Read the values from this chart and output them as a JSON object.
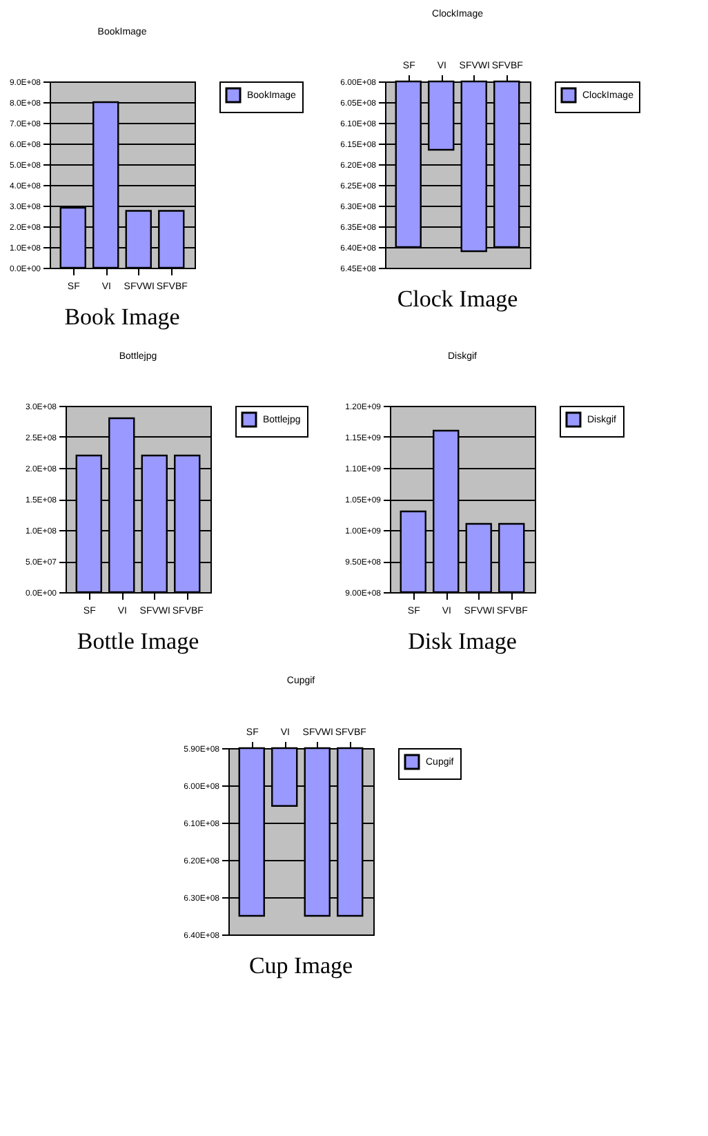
{
  "chart_data": [
    {
      "type": "bar",
      "title": "BookImage",
      "categories": [
        "SF",
        "VI",
        "SFVWI",
        "SFVBF"
      ],
      "series": [
        {
          "name": "BookImage",
          "color": "#9999ff",
          "values": [
            290000000,
            800000000,
            275000000,
            275000000
          ]
        }
      ],
      "ylim": [
        0,
        900000000
      ],
      "yticks": [
        {
          "value": 0,
          "label": "0.0E+00"
        },
        {
          "value": 100000000,
          "label": "1.0E+08"
        },
        {
          "value": 200000000,
          "label": "2.0E+08"
        },
        {
          "value": 300000000,
          "label": "3.0E+08"
        },
        {
          "value": 400000000,
          "label": "4.0E+08"
        },
        {
          "value": 500000000,
          "label": "5.0E+08"
        },
        {
          "value": 600000000,
          "label": "6.0E+08"
        },
        {
          "value": 700000000,
          "label": "7.0E+08"
        },
        {
          "value": 800000000,
          "label": "8.0E+08"
        },
        {
          "value": 900000000,
          "label": "9.0E+08"
        }
      ],
      "grid": "y",
      "legend": "right",
      "annotations": [
        "Book Image"
      ]
    },
    {
      "type": "bar",
      "title": "ClockImage",
      "categories": [
        "SF",
        "VI",
        "SFVWI",
        "SFVBF"
      ],
      "series": [
        {
          "name": "ClockImage",
          "color": "#9999ff",
          "values": [
            640000000,
            616500000,
            641000000,
            640000000
          ]
        }
      ],
      "ylim": [
        645000000,
        600000000
      ],
      "yticks": [
        {
          "value": 600000000,
          "label": "6.00E+08"
        },
        {
          "value": 605000000,
          "label": "6.05E+08"
        },
        {
          "value": 610000000,
          "label": "6.10E+08"
        },
        {
          "value": 615000000,
          "label": "6.15E+08"
        },
        {
          "value": 620000000,
          "label": "6.20E+08"
        },
        {
          "value": 625000000,
          "label": "6.25E+08"
        },
        {
          "value": 630000000,
          "label": "6.30E+08"
        },
        {
          "value": 635000000,
          "label": "6.35E+08"
        },
        {
          "value": 640000000,
          "label": "6.40E+08"
        },
        {
          "value": 645000000,
          "label": "6.45E+08"
        }
      ],
      "grid": "y",
      "legend": "right",
      "annotations": [
        "Clock Image"
      ]
    },
    {
      "type": "bar",
      "title": "Bottlejpg",
      "categories": [
        "SF",
        "VI",
        "SFVWI",
        "SFVBF"
      ],
      "series": [
        {
          "name": "Bottlejpg",
          "color": "#9999ff",
          "values": [
            220000000,
            280000000,
            220000000,
            220000000
          ]
        }
      ],
      "ylim": [
        0,
        300000000
      ],
      "yticks": [
        {
          "value": 0,
          "label": "0.0E+00"
        },
        {
          "value": 50000000,
          "label": "5.0E+07"
        },
        {
          "value": 100000000,
          "label": "1.0E+08"
        },
        {
          "value": 150000000,
          "label": "1.5E+08"
        },
        {
          "value": 200000000,
          "label": "2.0E+08"
        },
        {
          "value": 250000000,
          "label": "2.5E+08"
        },
        {
          "value": 300000000,
          "label": "3.0E+08"
        }
      ],
      "grid": "y",
      "legend": "right",
      "annotations": [
        "Bottle Image"
      ]
    },
    {
      "type": "bar",
      "title": "Diskgif",
      "categories": [
        "SF",
        "VI",
        "SFVWI",
        "SFVBF"
      ],
      "series": [
        {
          "name": "Diskgif",
          "color": "#9999ff",
          "values": [
            1030000000,
            1160000000,
            1010000000,
            1010000000
          ]
        }
      ],
      "ylim": [
        900000000,
        1200000000
      ],
      "yticks": [
        {
          "value": 900000000,
          "label": "9.00E+08"
        },
        {
          "value": 950000000,
          "label": "9.50E+08"
        },
        {
          "value": 1000000000,
          "label": "1.00E+09"
        },
        {
          "value": 1050000000,
          "label": "1.05E+09"
        },
        {
          "value": 1100000000,
          "label": "1.10E+09"
        },
        {
          "value": 1150000000,
          "label": "1.15E+09"
        },
        {
          "value": 1200000000,
          "label": "1.20E+09"
        }
      ],
      "grid": "y",
      "legend": "right",
      "annotations": [
        "Disk Image"
      ]
    },
    {
      "type": "bar",
      "title": "Cupgif",
      "categories": [
        "SF",
        "VI",
        "SFVWI",
        "SFVBF"
      ],
      "series": [
        {
          "name": "Cupgif",
          "color": "#9999ff",
          "values": [
            635000000,
            605500000,
            635000000,
            635000000
          ]
        }
      ],
      "ylim": [
        640000000,
        590000000
      ],
      "yticks": [
        {
          "value": 590000000,
          "label": "5.90E+08"
        },
        {
          "value": 600000000,
          "label": "6.00E+08"
        },
        {
          "value": 610000000,
          "label": "6.10E+08"
        },
        {
          "value": 620000000,
          "label": "6.20E+08"
        },
        {
          "value": 630000000,
          "label": "6.30E+08"
        },
        {
          "value": 640000000,
          "label": "6.40E+08"
        }
      ],
      "grid": "y",
      "legend": "right",
      "annotations": [
        "Cup Image"
      ]
    }
  ]
}
